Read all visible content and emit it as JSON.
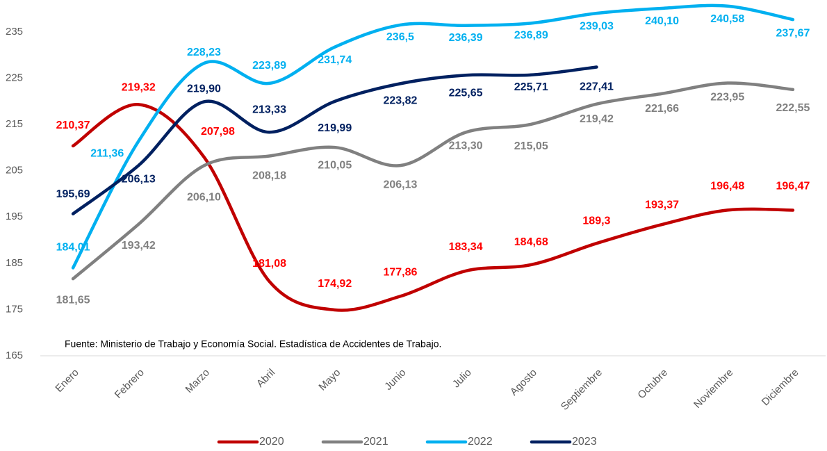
{
  "chart_data": {
    "type": "line",
    "categories": [
      "Enero",
      "Febrero",
      "Marzo",
      "Abril",
      "Mayo",
      "Junio",
      "Julio",
      "Agosto",
      "Septiembre",
      "Octubre",
      "Noviembre",
      "Diciembre"
    ],
    "series": [
      {
        "name": "2020",
        "color": "#c00000",
        "label_color": "#ff0000",
        "values": [
          210.37,
          219.32,
          207.98,
          181.08,
          174.92,
          177.86,
          183.34,
          184.68,
          189.3,
          193.37,
          196.48,
          196.47
        ],
        "value_labels": [
          "210,37",
          "219,32",
          "207,98",
          "181,08",
          "174,92",
          "177,86",
          "183,34",
          "184,68",
          "189,3",
          "193,37",
          "196,48",
          "196,47"
        ]
      },
      {
        "name": "2021",
        "color": "#808080",
        "label_color": "#808080",
        "values": [
          181.65,
          193.42,
          206.1,
          208.18,
          210.05,
          206.13,
          213.3,
          215.05,
          219.42,
          221.66,
          223.95,
          222.55
        ],
        "value_labels": [
          "181,65",
          "193,42",
          "206,10",
          "208,18",
          "210,05",
          "206,13",
          "213,30",
          "215,05",
          "219,42",
          "221,66",
          "223,95",
          "222,55"
        ]
      },
      {
        "name": "2022",
        "color": "#00b0f0",
        "label_color": "#00b0f0",
        "values": [
          184.01,
          211.36,
          228.23,
          223.89,
          231.74,
          236.5,
          236.39,
          236.89,
          239.03,
          240.1,
          240.58,
          237.67
        ],
        "value_labels": [
          "184,01",
          "211,36",
          "228,23",
          "223,89",
          "231,74",
          "236,5",
          "236,39",
          "236,89",
          "239,03",
          "240,10",
          "240,58",
          "237,67"
        ]
      },
      {
        "name": "2023",
        "color": "#002060",
        "label_color": "#002060",
        "values": [
          195.69,
          206.13,
          219.9,
          213.33,
          219.99,
          223.82,
          225.65,
          225.71,
          227.41,
          null,
          null,
          null
        ],
        "value_labels": [
          "195,69",
          "206,13",
          "219,90",
          "213,33",
          "219,99",
          "223,82",
          "225,65",
          "225,71",
          "227,41",
          null,
          null,
          null
        ]
      }
    ],
    "ylim": [
      165,
      241
    ],
    "yticks": [
      165,
      175,
      185,
      195,
      205,
      215,
      225,
      235
    ],
    "annotation": "Fuente: Ministerio de Trabajo y Economía Social. Estadística de Accidentes de Trabajo.",
    "legend": "bottom"
  }
}
